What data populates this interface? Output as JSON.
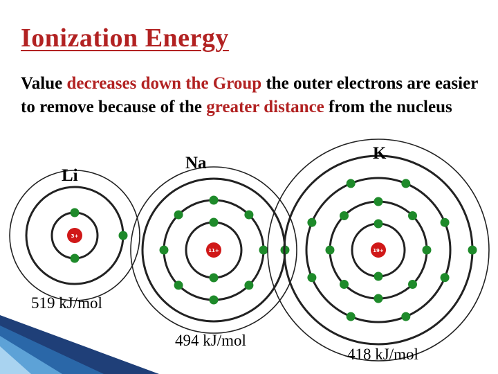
{
  "title": "Ionization Energy",
  "body": {
    "s1": "Value ",
    "s2": "decreases down the Group",
    "s3": " the outer electrons are easier to remove because of the ",
    "s4": "greater distance",
    "s5": " from the nucleus"
  },
  "atoms": [
    {
      "symbol": "Li",
      "nucleus_label": "3+",
      "shells": [
        2,
        1
      ],
      "energy": "519 kJ/mol"
    },
    {
      "symbol": "Na",
      "nucleus_label": "11+",
      "shells": [
        2,
        8,
        1
      ],
      "energy": "494 kJ/mol"
    },
    {
      "symbol": "K",
      "nucleus_label": "19+",
      "shells": [
        2,
        8,
        8,
        1
      ],
      "energy": "418 kJ/mol"
    }
  ],
  "colors": {
    "accent": "#b22222",
    "electron": "#1e8a2a",
    "nucleus": "#d01818",
    "orbit": "#222222",
    "corner": "#1f3f78"
  }
}
